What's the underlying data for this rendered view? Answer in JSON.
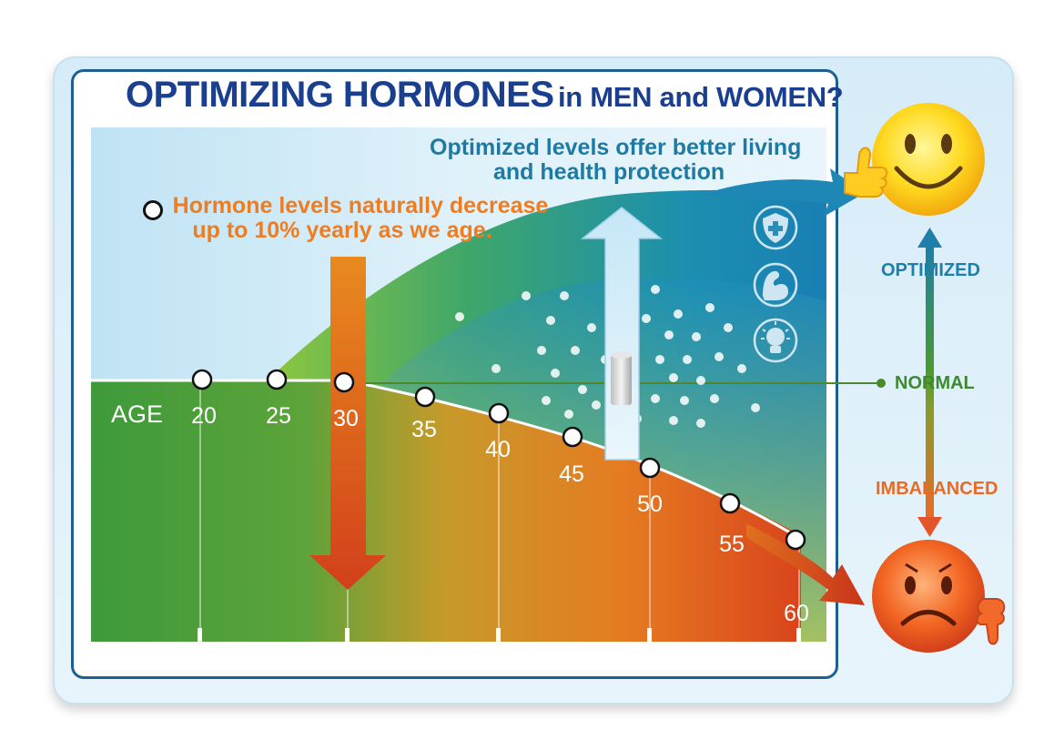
{
  "title": {
    "main": "OPTIMIZING HORMONES",
    "sub": "in MEN and WOMEN?"
  },
  "notes": {
    "optimized_line1": "Optimized levels offer better living",
    "optimized_line2": "and health protection",
    "decrease_line1": "Hormone levels naturally decrease",
    "decrease_line2": "up to 10% yearly as we age."
  },
  "axis": {
    "label": "AGE",
    "ticks": [
      "20",
      "25",
      "30",
      "35",
      "40",
      "45",
      "50",
      "55",
      "60"
    ]
  },
  "legend": {
    "optimized": "OPTIMIZED",
    "normal": "NORMAL",
    "imbalanced": "IMBALANCED"
  },
  "icons": [
    "shield-plus-icon",
    "flexed-arm-icon",
    "brain-lightbulb-icon",
    "happy-face-thumbs-up-icon",
    "sad-face-thumbs-down-icon"
  ],
  "colors": {
    "title": "#1b3f8f",
    "optimized": "#1f7aa3",
    "normal": "#3c8a2e",
    "imbalanced": "#e96a25",
    "green": "#3e9a3a",
    "yellow": "#e8d23a",
    "red": "#d43a1e"
  }
}
